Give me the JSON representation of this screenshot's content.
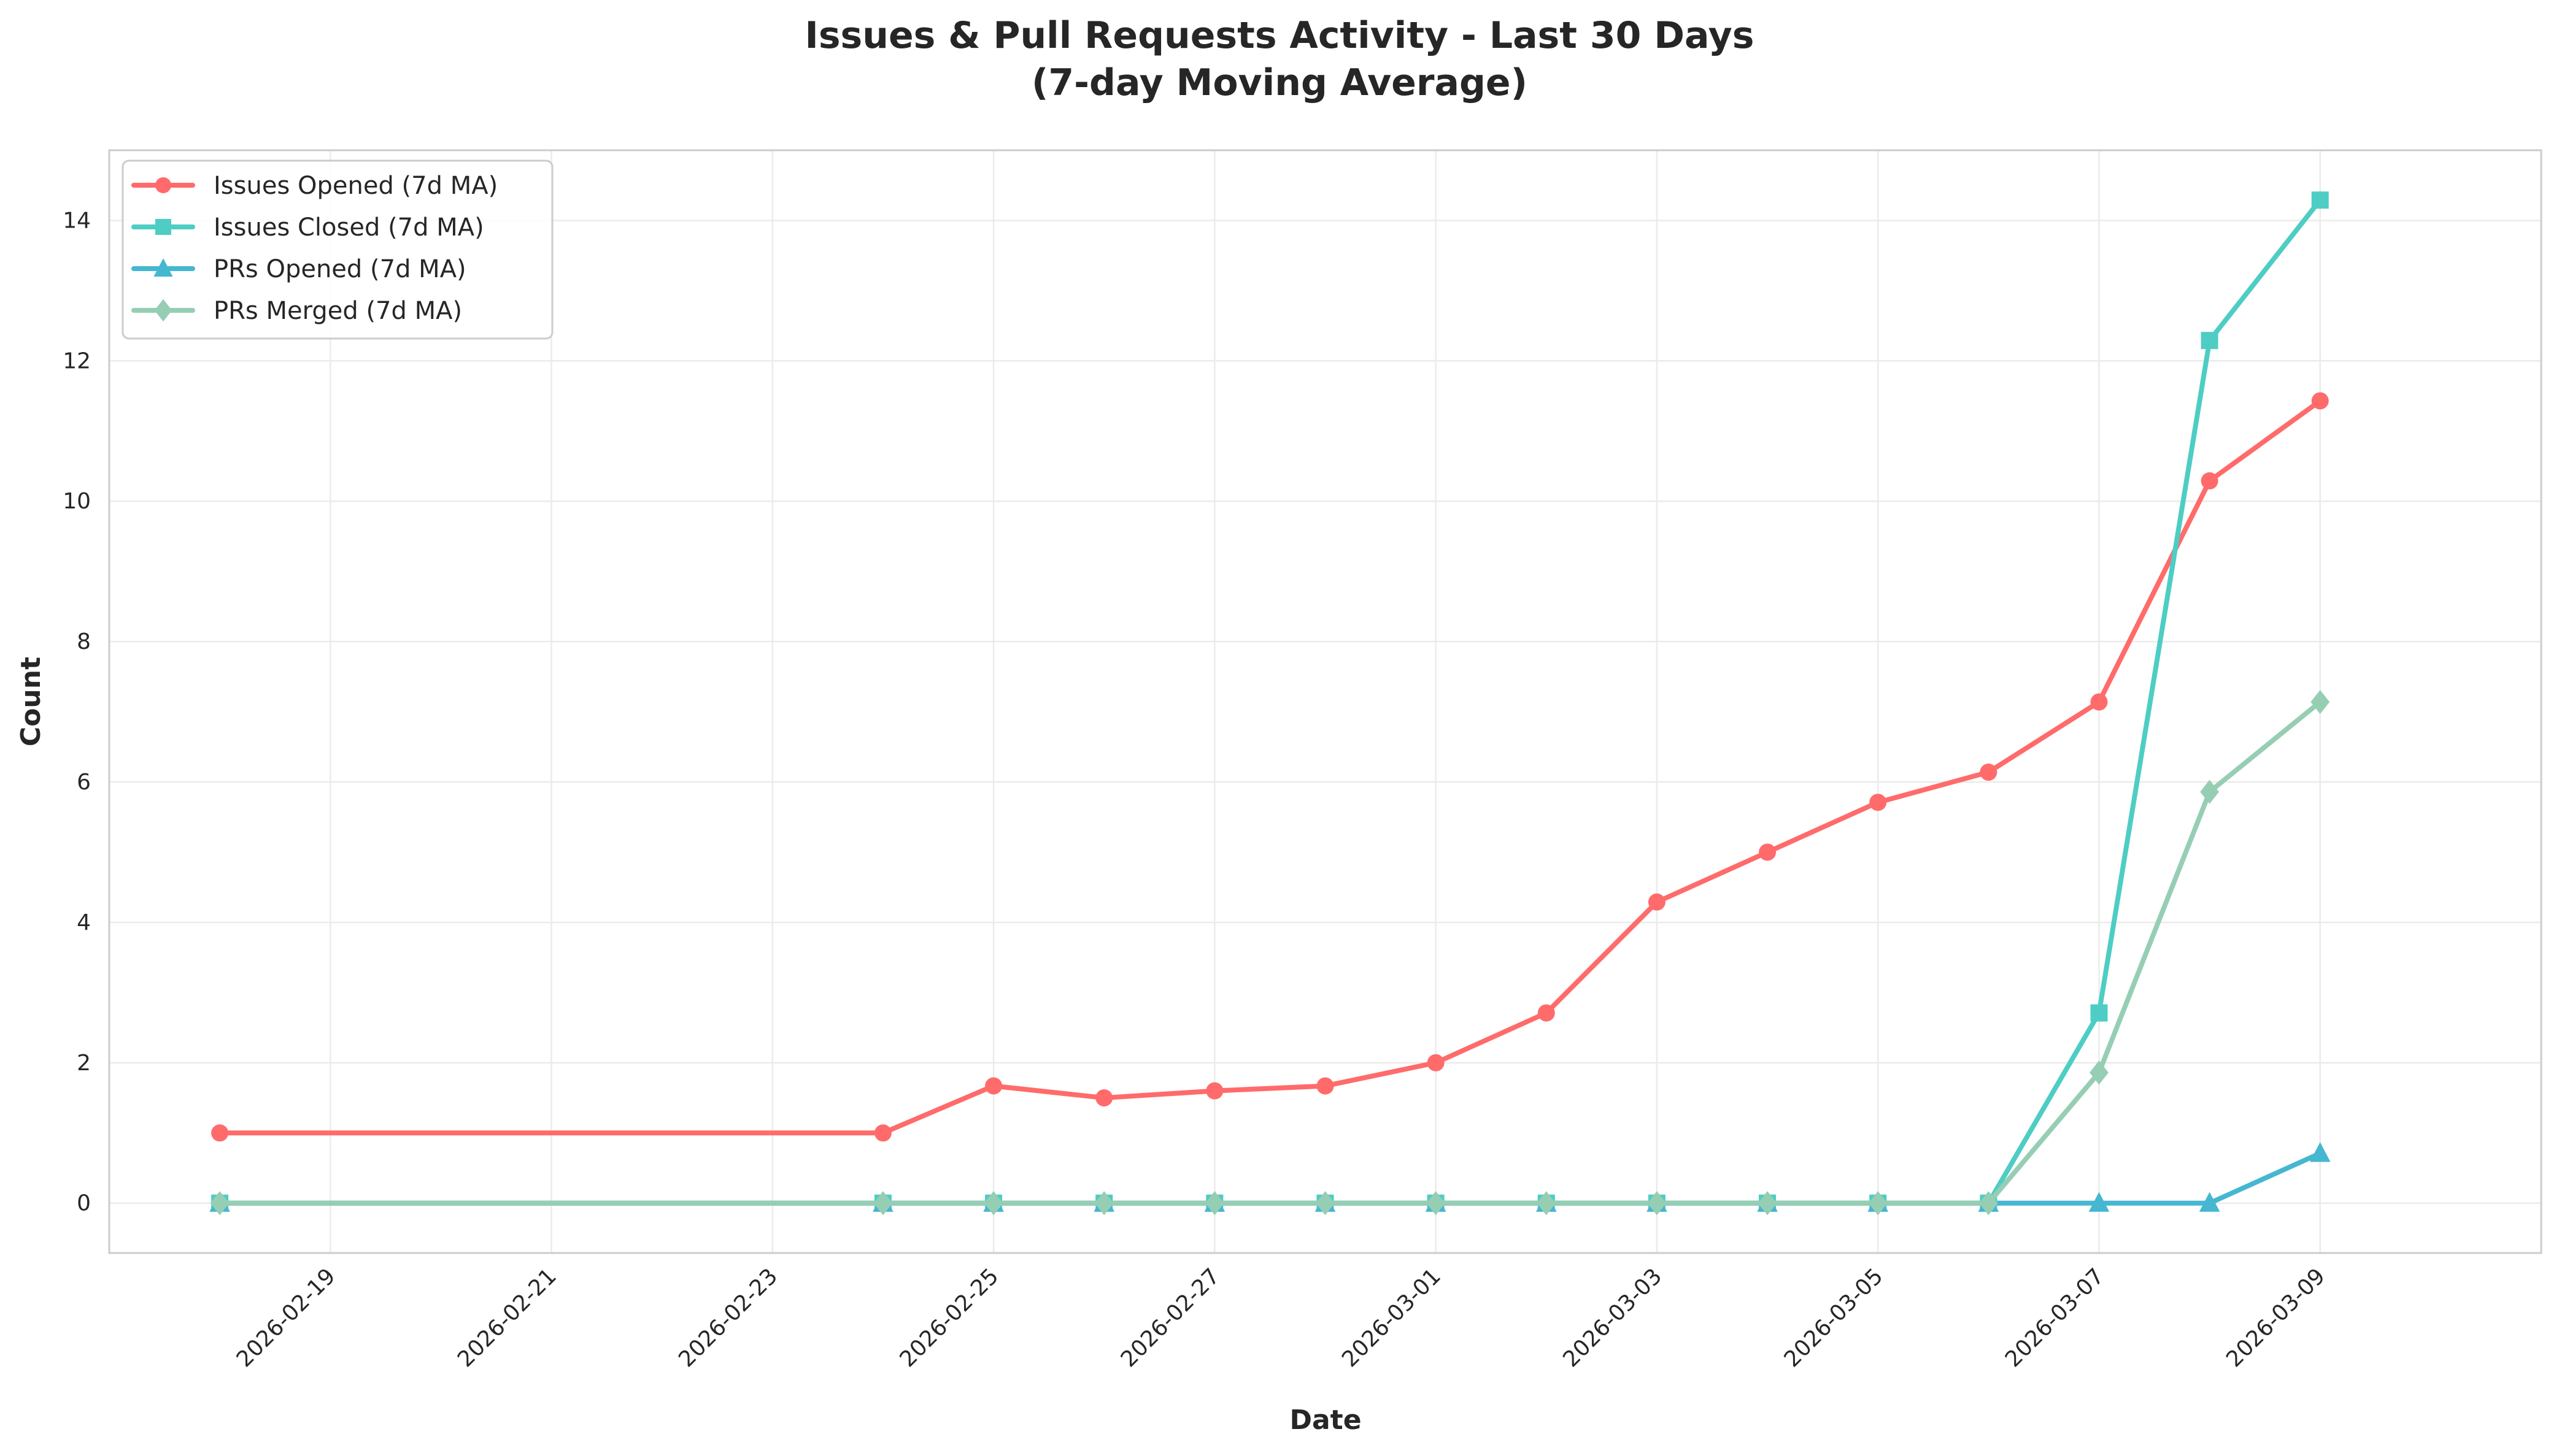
{
  "chart_data": {
    "type": "line",
    "title": [
      "Issues & Pull Requests Activity - Last 30 Days",
      "(7-day Moving Average)"
    ],
    "xlabel": "Date",
    "ylabel": "Count",
    "x": [
      "2026-02-18",
      "2026-02-24",
      "2026-02-25",
      "2026-02-26",
      "2026-02-27",
      "2026-02-28",
      "2026-03-01",
      "2026-03-02",
      "2026-03-03",
      "2026-03-04",
      "2026-03-05",
      "2026-03-06",
      "2026-03-07",
      "2026-03-08",
      "2026-03-09"
    ],
    "x_day_offsets": [
      0,
      6,
      7,
      8,
      9,
      10,
      11,
      12,
      13,
      14,
      15,
      16,
      17,
      18,
      19
    ],
    "xtick_labels": [
      "2026-02-19",
      "2026-02-21",
      "2026-02-23",
      "2026-02-25",
      "2026-02-27",
      "2026-03-01",
      "2026-03-03",
      "2026-03-05",
      "2026-03-07",
      "2026-03-09"
    ],
    "xtick_offsets": [
      1,
      3,
      5,
      7,
      9,
      11,
      13,
      15,
      17,
      19
    ],
    "xlim_day_offsets": [
      -1,
      21
    ],
    "ylim": [
      -0.71,
      15.0
    ],
    "yticks": [
      0,
      2,
      4,
      6,
      8,
      10,
      12,
      14
    ],
    "grid": true,
    "legend_position": "top-left",
    "series": [
      {
        "name": "Issues Opened (7d MA)",
        "color": "#FF6B6B",
        "marker": "circle",
        "values": [
          1,
          1,
          1.67,
          1.5,
          1.6,
          1.67,
          2.0,
          2.71,
          4.29,
          5.0,
          5.71,
          6.14,
          7.14,
          10.29,
          11.43
        ]
      },
      {
        "name": "Issues Closed (7d MA)",
        "color": "#4ECDC4",
        "marker": "square",
        "values": [
          0,
          0,
          0,
          0,
          0,
          0,
          0,
          0,
          0,
          0,
          0,
          0,
          2.71,
          12.29,
          14.29
        ]
      },
      {
        "name": "PRs Opened (7d MA)",
        "color": "#45B7D1",
        "marker": "triangle",
        "values": [
          0,
          0,
          0,
          0,
          0,
          0,
          0,
          0,
          0,
          0,
          0,
          0,
          0,
          0,
          0.71
        ]
      },
      {
        "name": "PRs Merged (7d MA)",
        "color": "#96CEB4",
        "marker": "diamond",
        "values": [
          0,
          0,
          0,
          0,
          0,
          0,
          0,
          0,
          0,
          0,
          0,
          0,
          1.86,
          5.86,
          7.14
        ]
      }
    ]
  }
}
